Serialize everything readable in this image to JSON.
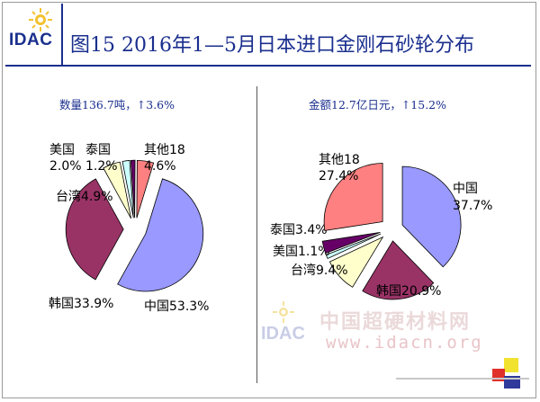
{
  "header": {
    "logo": "IDAC",
    "title": "图15  2016年1—5月日本进口金刚石砂轮分布"
  },
  "left_subtitle": "数量136.7吨，↑3.6%",
  "right_subtitle": "金额12.7亿日元，↑15.2%",
  "watermark": {
    "logo": "IDAC",
    "cn": "中国超硬材料网",
    "url": "www.idacn.org"
  },
  "colors": {
    "中国": "#9999ff",
    "韩国": "#993366",
    "台湾": "#ffffcc",
    "美国": "#ccffff",
    "泰国": "#660066",
    "其他18": "#ff8080",
    "title": "#1a2f8e"
  },
  "chart_data": [
    {
      "type": "pie",
      "title": "数量136.7吨，↑3.6%",
      "unit": "%",
      "slices": [
        {
          "label": "中国",
          "value": 53.3,
          "text": "中国53.3%"
        },
        {
          "label": "韩国",
          "value": 33.9,
          "text": "韩国33.9%"
        },
        {
          "label": "台湾",
          "value": 4.9,
          "text": "台湾4.9%"
        },
        {
          "label": "美国",
          "value": 2.0,
          "text": "美国",
          "text2": "2.0%"
        },
        {
          "label": "泰国",
          "value": 1.2,
          "text": "泰国",
          "text2": "1.2%"
        },
        {
          "label": "其他18",
          "value": 4.6,
          "text": "其他18",
          "text2": "4.6%"
        }
      ]
    },
    {
      "type": "pie",
      "title": "金额12.7亿日元，↑15.2%",
      "unit": "%",
      "slices": [
        {
          "label": "中国",
          "value": 37.7,
          "text": "中国",
          "text2": "37.7%"
        },
        {
          "label": "韩国",
          "value": 20.9,
          "text": "韩国20.9%"
        },
        {
          "label": "台湾",
          "value": 9.4,
          "text": "台湾9.4%"
        },
        {
          "label": "美国",
          "value": 1.1,
          "text": "美国1.1%"
        },
        {
          "label": "泰国",
          "value": 3.4,
          "text": "泰国3.4%"
        },
        {
          "label": "其他18",
          "value": 27.4,
          "text": "其他18",
          "text2": "27.4%"
        }
      ]
    }
  ]
}
